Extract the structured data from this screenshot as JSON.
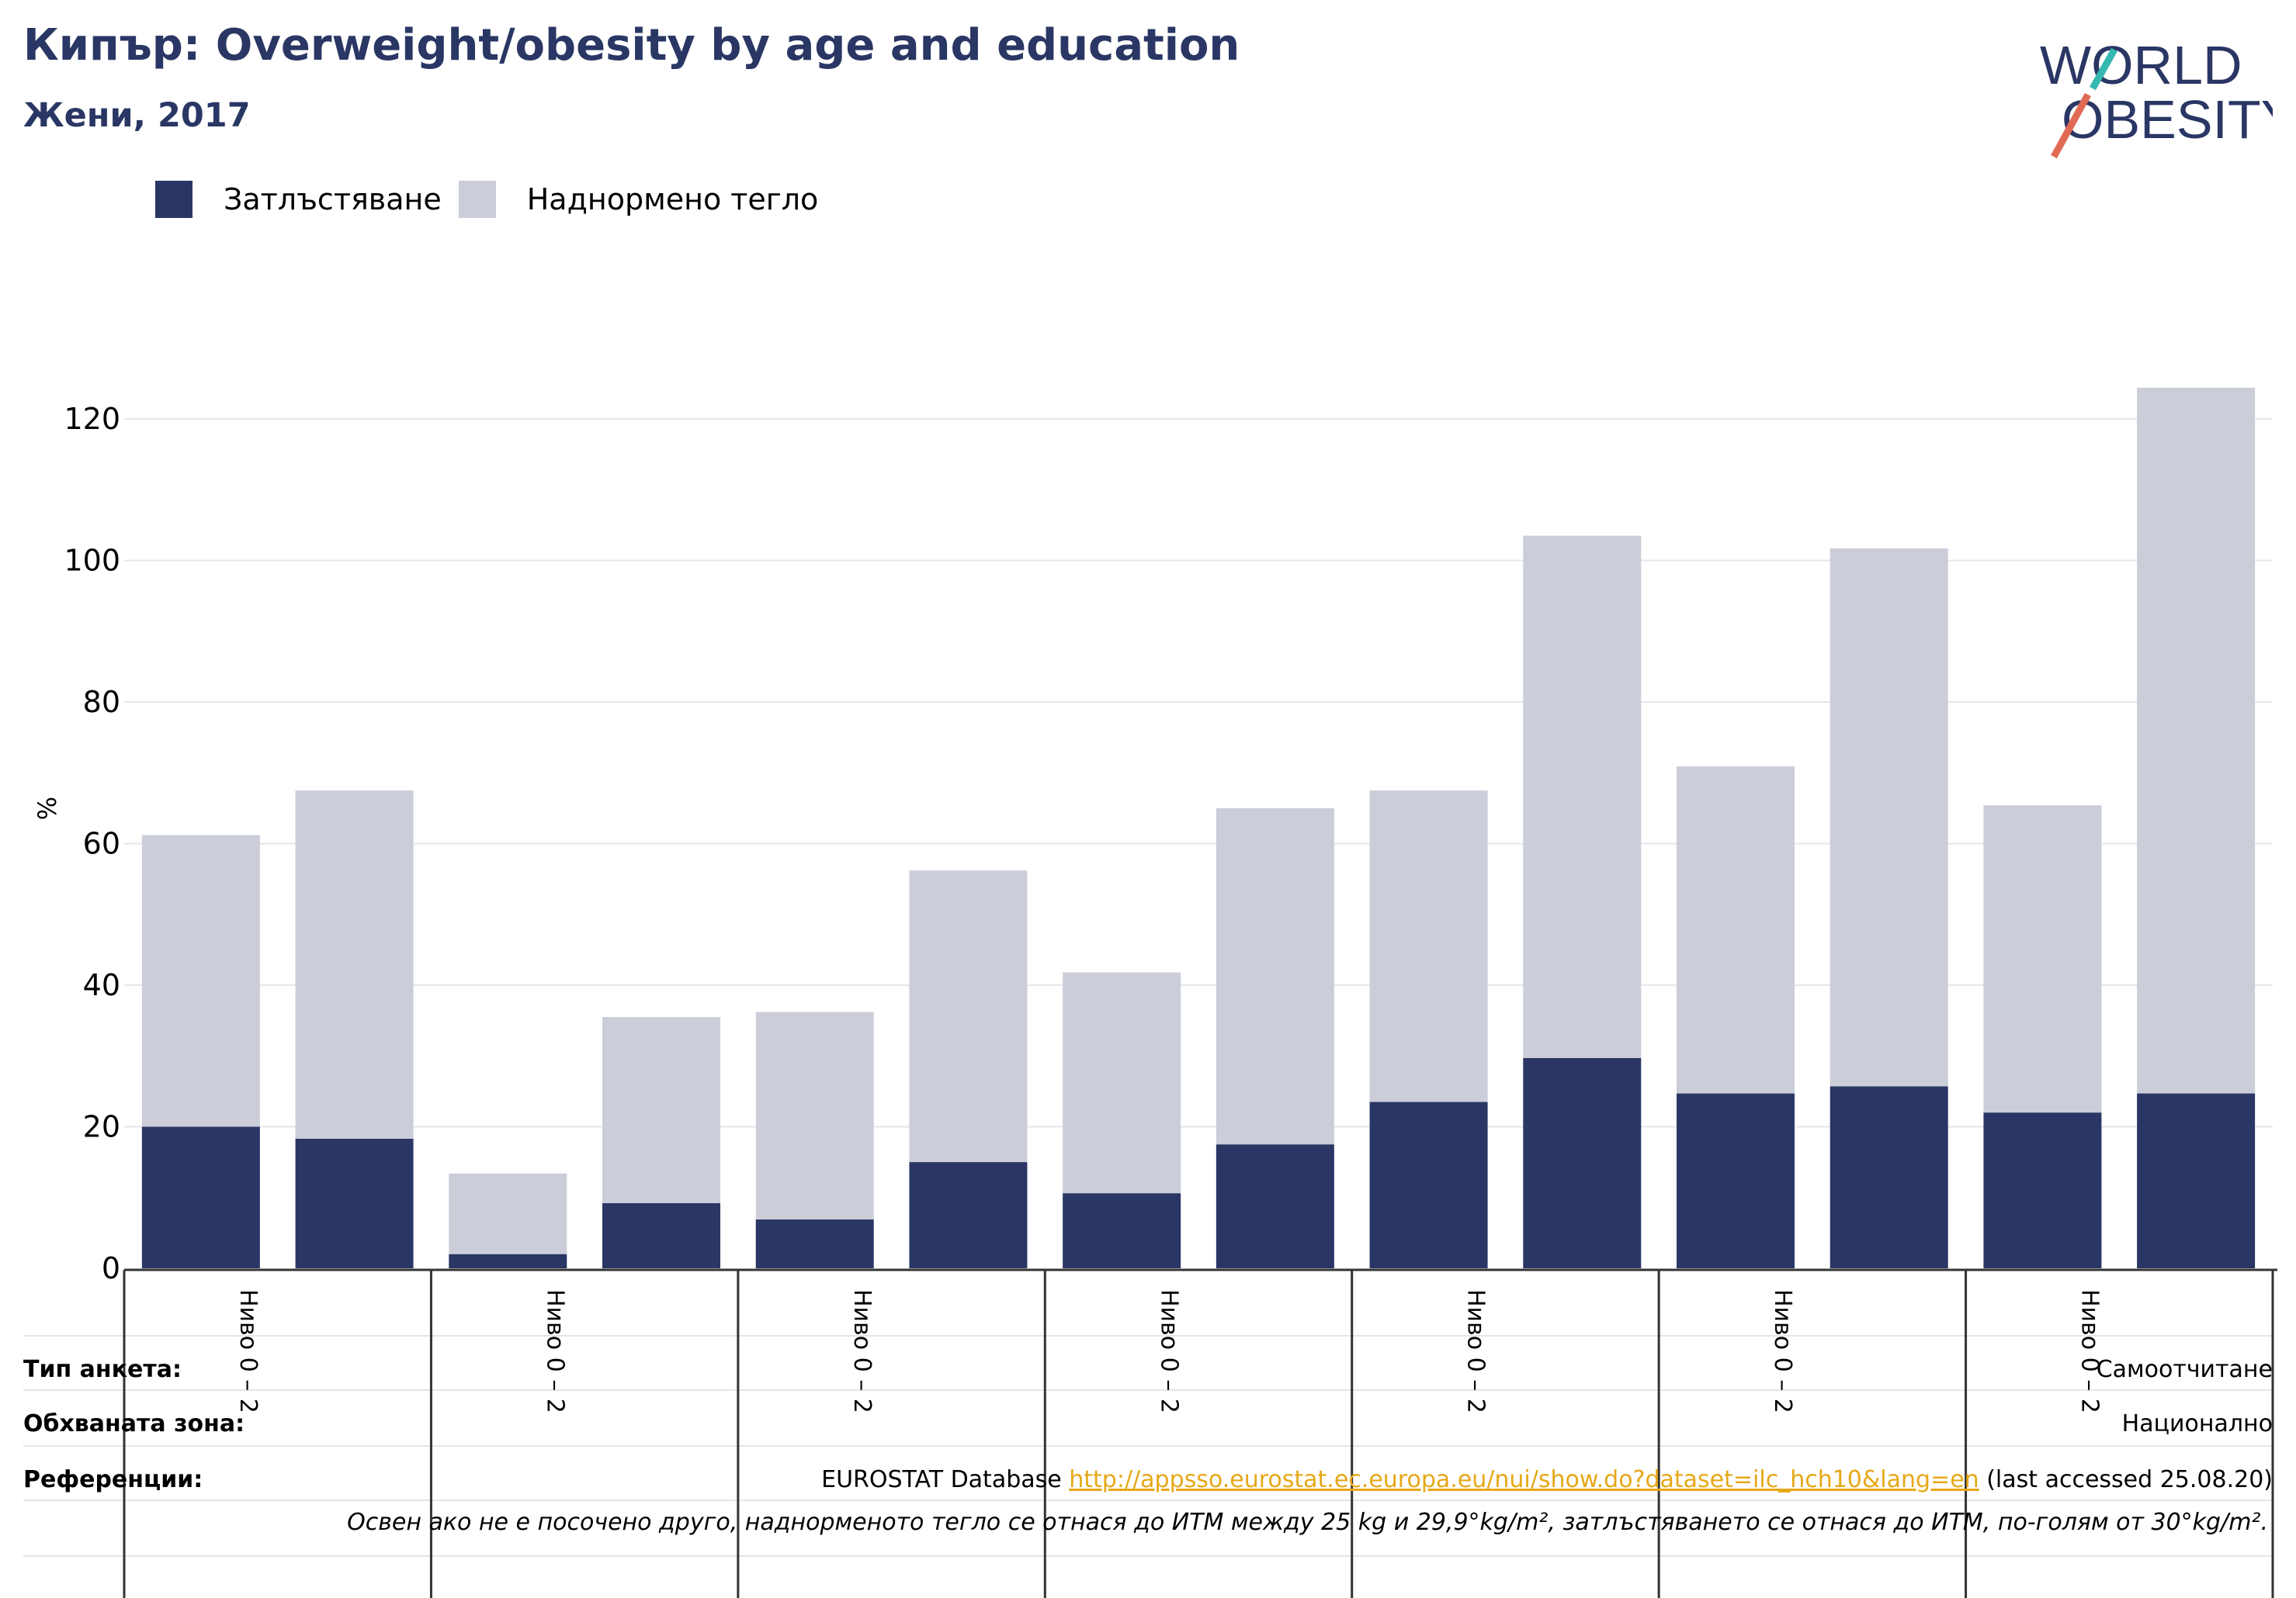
{
  "header": {
    "title": "Кипър: Overweight/obesity by age and education",
    "subtitle": "Жени, 2017"
  },
  "logo": {
    "line1": "WORLD",
    "line2": "OBESITY"
  },
  "legend": [
    {
      "label": "Затлъстяване",
      "color": "#2a3664"
    },
    {
      "label": "Наднормено тегло",
      "color": "#cbcdd8"
    }
  ],
  "chart_data": {
    "type": "bar",
    "stacked": true,
    "ylabel": "%",
    "ylim": [
      0,
      125
    ],
    "yticks": [
      0,
      20,
      40,
      60,
      80,
      100,
      120
    ],
    "grid": true,
    "legend_position": "top-left",
    "categories": [
      "Ниво 0 – 2",
      "",
      "Ниво 0 – 2",
      "",
      "Ниво 0 – 2",
      "",
      "Ниво 0 – 2",
      "",
      "Ниво 0 – 2",
      "",
      "Ниво 0 – 2",
      "",
      "Ниво 0 – 2",
      ""
    ],
    "group_labels": [
      "Ниво 0 – 2",
      "Ниво 0 – 2",
      "Ниво 0 – 2",
      "Ниво 0 – 2",
      "Ниво 0 – 2",
      "Ниво 0 – 2",
      "Ниво 0 – 2"
    ],
    "series": [
      {
        "name": "Затлъстяване",
        "color": "#2a3664",
        "values": [
          20.0,
          18.3,
          2.0,
          9.2,
          6.9,
          15.0,
          10.6,
          17.5,
          23.5,
          29.7,
          24.7,
          25.7,
          22.0,
          24.7
        ]
      },
      {
        "name": "Наднормено тегло",
        "color": "#cbcdd8",
        "values": [
          41.2,
          49.2,
          11.4,
          26.3,
          29.3,
          41.2,
          31.2,
          47.5,
          44.0,
          73.8,
          46.2,
          76.0,
          43.4,
          99.7
        ]
      }
    ]
  },
  "info": {
    "survey_label": "Тип анкета:",
    "survey_value": "Самоотчитане",
    "coverage_label": "Обхваната зона:",
    "coverage_value": "Национално",
    "references_label": "Референции:",
    "references_prefix": "EUROSTAT Database",
    "references_link": "http://appsso.eurostat.ec.europa.eu/nui/show.do?dataset=ilc_hch10&lang=en",
    "references_suffix": "(last accessed 25.08.20)",
    "note": "Освен ако не е посочено друго, наднорменото тегло се отнася до ИТМ между 25 kg и 29,9°kg/m², затлъстяването се отнася до ИТМ, по-голям от 30°kg/m²."
  }
}
